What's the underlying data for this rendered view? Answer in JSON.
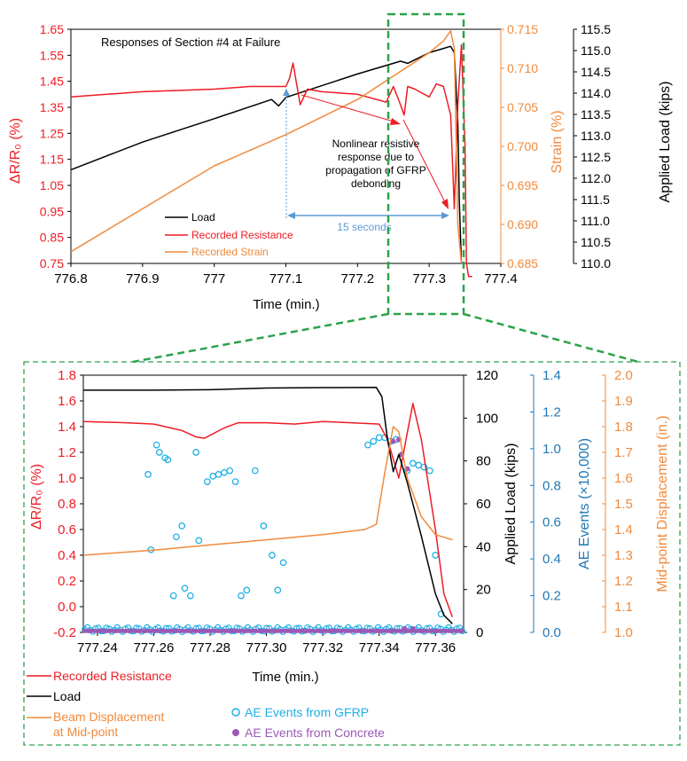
{
  "colors": {
    "resistance": "#ee1c25",
    "load": "#000000",
    "strain": "#f08a3c",
    "displacement": "#f08a3c",
    "ae_gfrp": "#1fb0e6",
    "ae_concrete": "#9b59b6",
    "ae_axis": "#1f77b4",
    "zoom_box": "#2ca24b",
    "arrow_blue": "#5b9bd5"
  },
  "chart_data": [
    {
      "type": "line",
      "title": "Responses of Section #4 at Failure",
      "xlabel": "Time (min.)",
      "ylabel_left": "ΔR/R₀ (%)",
      "ylabel_right1": "Strain (%)",
      "ylabel_right2": "Applied Load (kips)",
      "xlim": [
        776.8,
        777.4
      ],
      "ylim_left": [
        0.75,
        1.65
      ],
      "ylim_right1": [
        0.685,
        0.715
      ],
      "ylim_right2": [
        110.0,
        115.5
      ],
      "x_ticks": [
        "776.8",
        "776.9",
        "777",
        "777.1",
        "777.2",
        "777.3",
        "777.4"
      ],
      "y_ticks_left": [
        "0.75",
        "0.85",
        "0.95",
        "1.05",
        "1.15",
        "1.25",
        "1.35",
        "1.45",
        "1.55",
        "1.65"
      ],
      "y_ticks_right1": [
        "0.685",
        "0.690",
        "0.695",
        "0.700",
        "0.705",
        "0.710",
        "0.715"
      ],
      "y_ticks_right2": [
        "110.0",
        "110.5",
        "111.0",
        "111.5",
        "112.0",
        "112.5",
        "113.0",
        "113.5",
        "114.0",
        "114.5",
        "115.0",
        "115.5"
      ],
      "legend": [
        "Load",
        "Recorded Resistance",
        "Recorded Strain"
      ],
      "annotations": {
        "nonlinear": [
          "Nonlinear resistive",
          "response due to",
          "propagation of GFRP",
          "debonding"
        ],
        "duration": "15 seconds"
      },
      "series": [
        {
          "name": "Load",
          "axis": "right2",
          "x": [
            776.8,
            776.9,
            777.0,
            777.08,
            777.09,
            777.1,
            777.2,
            777.26,
            777.27,
            777.3,
            777.32,
            777.33,
            777.335,
            777.34,
            777.342,
            777.345
          ],
          "values": [
            112.2,
            112.85,
            113.4,
            113.85,
            113.7,
            113.9,
            114.45,
            114.75,
            114.7,
            114.95,
            115.05,
            115.1,
            114.95,
            113.3,
            111.5,
            110.0
          ]
        },
        {
          "name": "Recorded Resistance",
          "axis": "left",
          "x": [
            776.8,
            776.9,
            777.0,
            777.05,
            777.1,
            777.105,
            777.11,
            777.115,
            777.12,
            777.13,
            777.15,
            777.2,
            777.24,
            777.25,
            777.26,
            777.265,
            777.27,
            777.28,
            777.3,
            777.31,
            777.32,
            777.33,
            777.335,
            777.34,
            777.345,
            777.35,
            777.352,
            777.355,
            777.36
          ],
          "values": [
            1.39,
            1.41,
            1.42,
            1.43,
            1.43,
            1.46,
            1.52,
            1.44,
            1.36,
            1.42,
            1.41,
            1.4,
            1.37,
            1.43,
            1.36,
            1.32,
            1.43,
            1.42,
            1.39,
            1.44,
            1.43,
            1.32,
            0.96,
            1.36,
            1.59,
            1.2,
            0.75,
            0.7,
            0.7
          ]
        },
        {
          "name": "Recorded Strain",
          "axis": "right1",
          "x": [
            776.8,
            776.9,
            777.0,
            777.1,
            777.2,
            777.25,
            777.3,
            777.32,
            777.33,
            777.335,
            777.34,
            777.345
          ],
          "values": [
            0.6865,
            0.692,
            0.6975,
            0.7015,
            0.706,
            0.709,
            0.712,
            0.7135,
            0.7148,
            0.7125,
            0.69,
            0.685
          ]
        }
      ]
    },
    {
      "type": "line",
      "title": "",
      "xlabel": "Time (min.)",
      "ylabel_left": "ΔR/R₀ (%)",
      "ylabel_right1": "Applied Load (kips)",
      "ylabel_right2": "AE Events (×10,000)",
      "ylabel_right3": "Mid-point Displacement (in.)",
      "xlim": [
        777.235,
        777.37
      ],
      "ylim_left": [
        -0.2,
        1.8
      ],
      "ylim_right1": [
        0,
        120
      ],
      "ylim_right2": [
        0,
        1.4
      ],
      "ylim_right3": [
        1.0,
        2.0
      ],
      "x_ticks": [
        "777.24",
        "777.26",
        "777.28",
        "777.30",
        "777.32",
        "777.34",
        "777.36"
      ],
      "y_ticks_left": [
        "-0.2",
        "0.0",
        "0.2",
        "0.4",
        "0.6",
        "0.8",
        "1.0",
        "1.2",
        "1.4",
        "1.6",
        "1.8"
      ],
      "y_ticks_right1": [
        "0",
        "20",
        "40",
        "60",
        "80",
        "100",
        "120"
      ],
      "y_ticks_right2": [
        "0.0",
        "0.2",
        "0.4",
        "0.6",
        "0.8",
        "1.0",
        "1.2",
        "1.4"
      ],
      "y_ticks_right3": [
        "1.0",
        "1.1",
        "1.2",
        "1.3",
        "1.4",
        "1.5",
        "1.6",
        "1.7",
        "1.8",
        "1.9",
        "2.0"
      ],
      "legend": [
        "Recorded Resistance",
        "Load",
        "Beam Displacement at Mid-point",
        "AE Events from GFRP",
        "AE Events from Concrete"
      ],
      "series": [
        {
          "name": "Recorded Resistance",
          "axis": "left",
          "x": [
            777.235,
            777.25,
            777.26,
            777.27,
            777.275,
            777.278,
            777.285,
            777.29,
            777.3,
            777.31,
            777.32,
            777.33,
            777.34,
            777.343,
            777.347,
            777.35,
            777.352,
            777.355,
            777.36,
            777.363,
            777.366
          ],
          "values": [
            1.44,
            1.43,
            1.42,
            1.37,
            1.32,
            1.31,
            1.39,
            1.43,
            1.43,
            1.42,
            1.44,
            1.43,
            1.42,
            1.3,
            1.0,
            1.35,
            1.58,
            1.3,
            0.6,
            0.1,
            -0.08
          ]
        },
        {
          "name": "Load",
          "axis": "right1",
          "x": [
            777.235,
            777.26,
            777.28,
            777.3,
            777.32,
            777.339,
            777.341,
            777.343,
            777.345,
            777.347,
            777.35,
            777.355,
            777.36,
            777.363,
            777.366
          ],
          "values": [
            113,
            113,
            113.2,
            114,
            114.2,
            114.3,
            110,
            90,
            75,
            83,
            70,
            45,
            18,
            8,
            4
          ]
        },
        {
          "name": "Beam Displacement at Mid-point",
          "axis": "right3",
          "x": [
            777.235,
            777.26,
            777.28,
            777.3,
            777.32,
            777.335,
            777.339,
            777.342,
            777.345,
            777.347,
            777.35,
            777.355,
            777.36,
            777.366
          ],
          "values": [
            1.3,
            1.32,
            1.34,
            1.36,
            1.38,
            1.4,
            1.42,
            1.62,
            1.8,
            1.78,
            1.6,
            1.45,
            1.38,
            1.36
          ]
        }
      ],
      "ae_gfrp": {
        "x": [
          777.258,
          777.259,
          777.261,
          777.262,
          777.264,
          777.265,
          777.267,
          777.268,
          777.27,
          777.271,
          777.273,
          777.275,
          777.276,
          777.279,
          777.281,
          777.283,
          777.285,
          777.287,
          777.289,
          777.291,
          777.293,
          777.296,
          777.299,
          777.302,
          777.304,
          777.306,
          777.336,
          777.338,
          777.34,
          777.342,
          777.344,
          777.346,
          777.35,
          777.352,
          777.354,
          777.356,
          777.358,
          777.36,
          777.362
        ],
        "values": [
          0.86,
          0.45,
          1.02,
          0.98,
          0.95,
          0.94,
          0.2,
          0.52,
          0.58,
          0.24,
          0.2,
          0.98,
          0.5,
          0.82,
          0.85,
          0.86,
          0.87,
          0.88,
          0.82,
          0.2,
          0.23,
          0.88,
          0.58,
          0.42,
          0.23,
          0.38,
          1.02,
          1.04,
          1.06,
          1.06,
          1.04,
          1.05,
          0.88,
          0.92,
          0.91,
          0.9,
          0.88,
          0.42,
          0.1
        ]
      },
      "ae_concrete": {
        "x": [
          777.345,
          777.347,
          777.348,
          777.35,
          777.349,
          777.352
        ],
        "values": [
          1.04,
          1.05,
          0.97,
          0.89,
          0.02,
          0.02
        ]
      }
    }
  ]
}
